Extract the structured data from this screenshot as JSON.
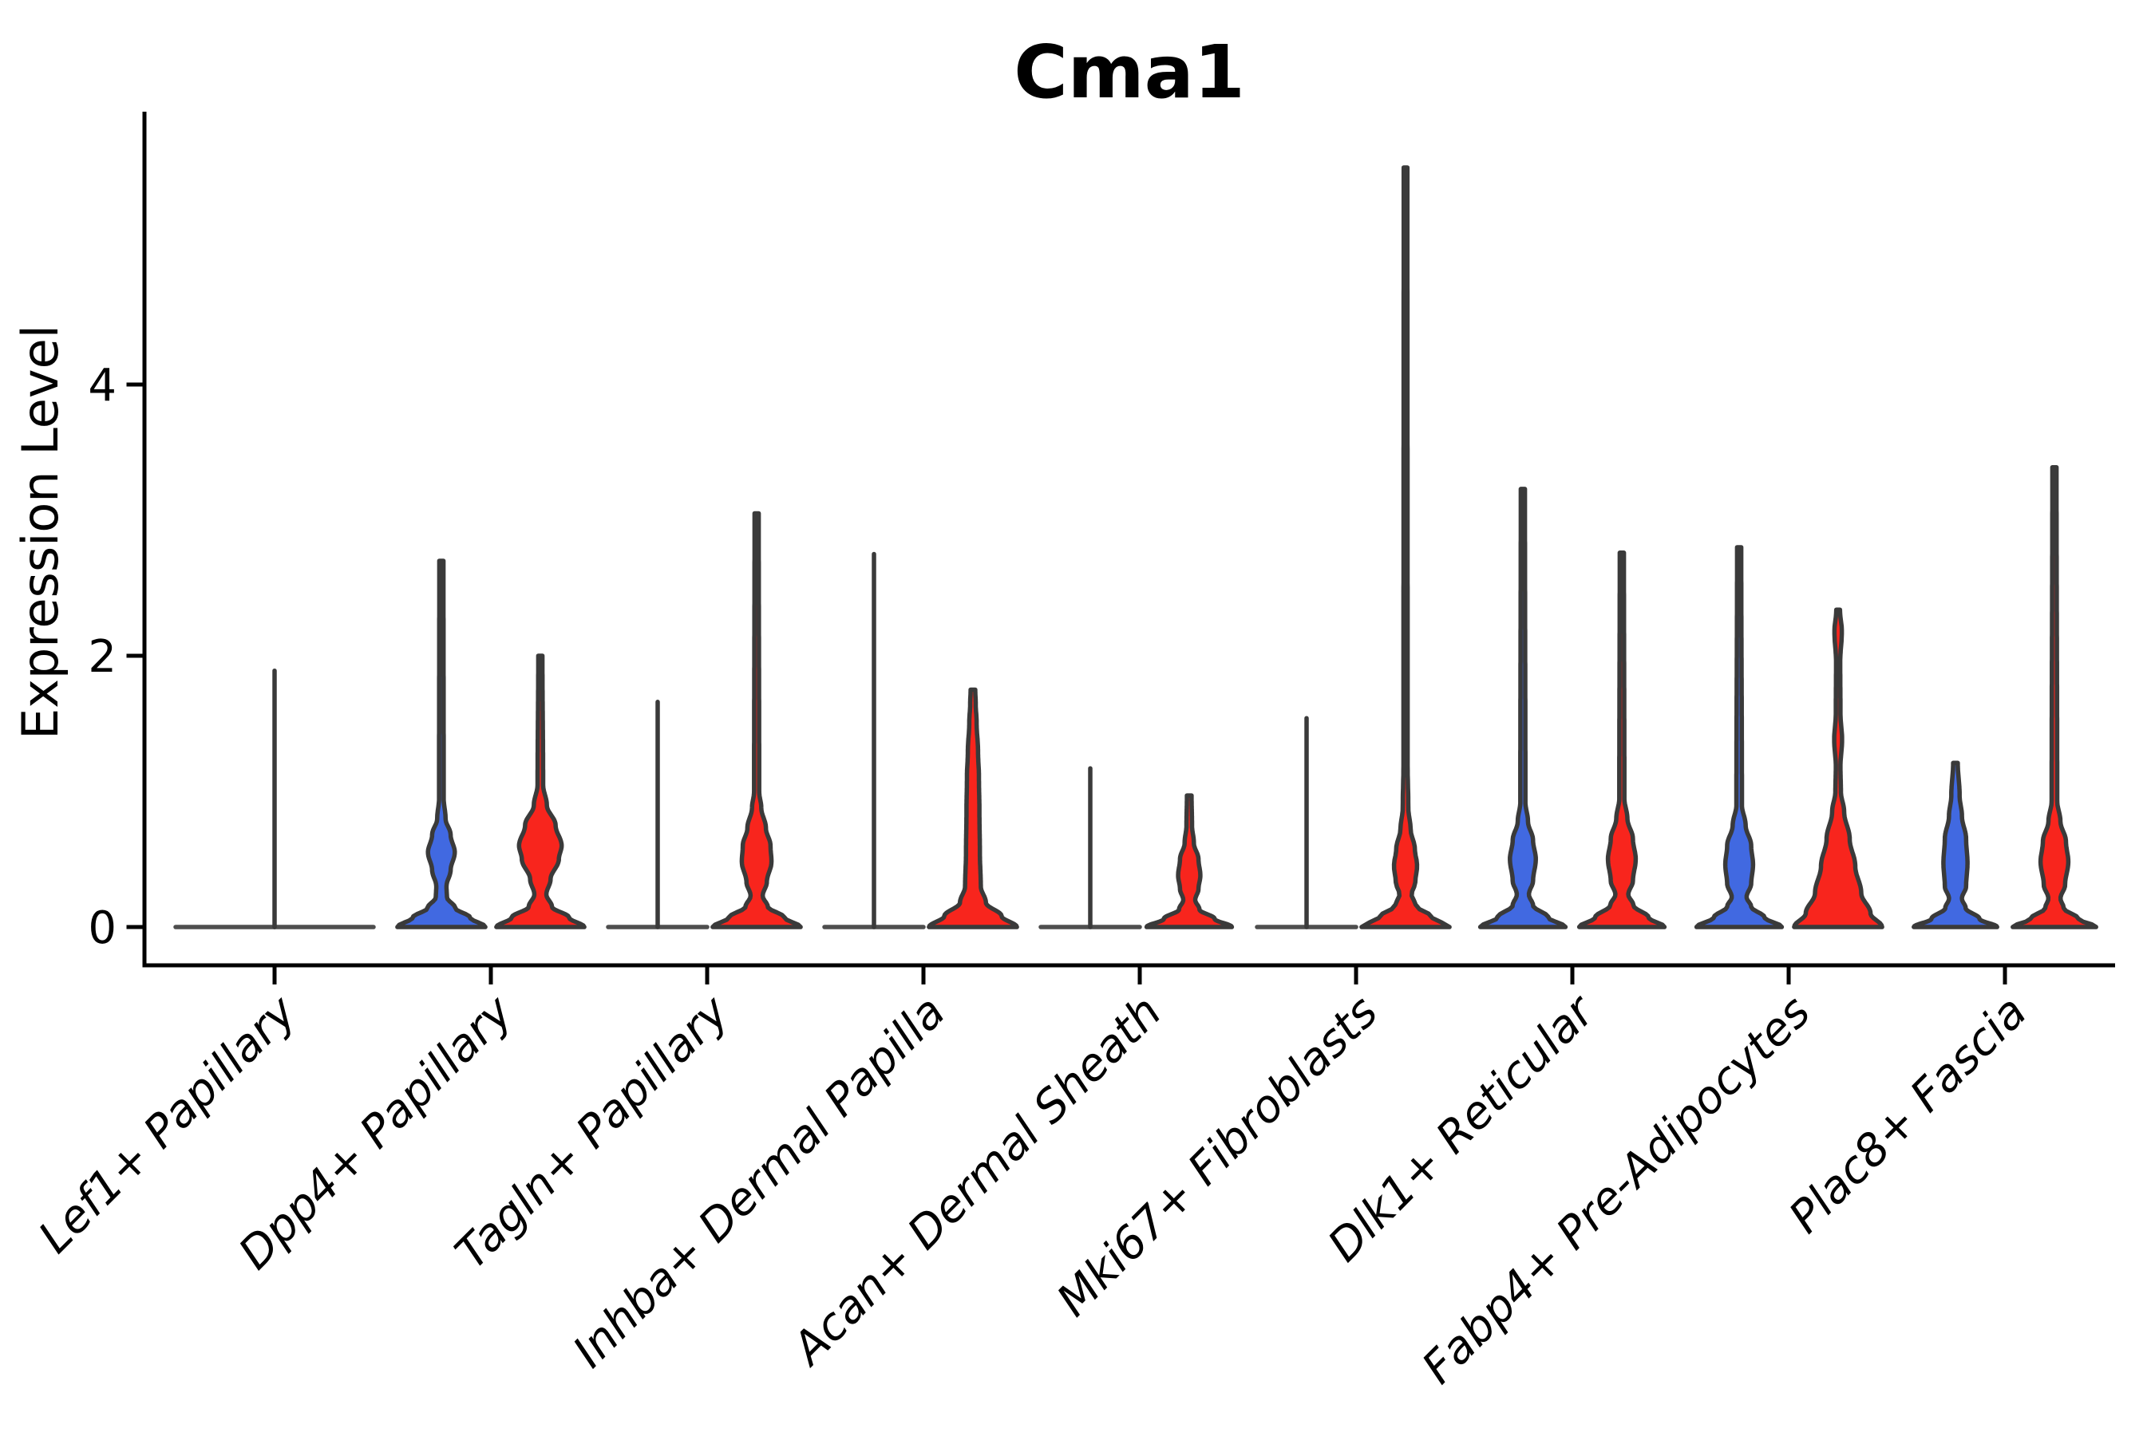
{
  "title": "Cma1",
  "axes": {
    "ylabel": "Expression Level",
    "yticks": [
      "0",
      "2",
      "4"
    ],
    "ytick_values": [
      0,
      2,
      4
    ]
  },
  "colors": {
    "blue_fill": "#4169E1",
    "red_fill": "#F8251D",
    "outline": "#3A3A3A",
    "flat_line": "#4E4E4E",
    "axis": "#000000",
    "background": "#FFFFFF"
  },
  "chart_data": {
    "type": "violin",
    "title": "Cma1",
    "ylabel": "Expression Level",
    "ylim": [
      0,
      6.0
    ],
    "grid": false,
    "legend": "none",
    "split": [
      "blue",
      "red"
    ],
    "categories": [
      "Lef1+ Papillary",
      "Dpp4+ Papillary",
      "Tagln+ Papillary",
      "Inhba+ Dermal Papilla",
      "Acan+ Dermal Sheath",
      "Mki67+ Fibroblasts",
      "Dlk1+ Reticular",
      "Fabp4+ Pre-Adipocytes",
      "Plac8+ Fascia"
    ],
    "groups": [
      {
        "category": "Lef1+ Papillary",
        "center_spike": 1.89,
        "blue": {
          "type": "flat"
        },
        "red": {
          "type": "flat"
        }
      },
      {
        "category": "Dpp4+ Papillary",
        "blue": {
          "type": "violin",
          "max": 2.7,
          "profile": [
            [
              0,
              0.95
            ],
            [
              0.07,
              0.62
            ],
            [
              0.14,
              0.3
            ],
            [
              0.22,
              0.12
            ],
            [
              0.3,
              0.11
            ],
            [
              0.42,
              0.2
            ],
            [
              0.55,
              0.29
            ],
            [
              0.68,
              0.2
            ],
            [
              0.8,
              0.09
            ],
            [
              0.95,
              0.05
            ],
            [
              2.7,
              0.045
            ]
          ]
        },
        "red": {
          "type": "violin",
          "max": 2.0,
          "profile": [
            [
              0,
              0.95
            ],
            [
              0.07,
              0.62
            ],
            [
              0.15,
              0.25
            ],
            [
              0.24,
              0.13
            ],
            [
              0.35,
              0.22
            ],
            [
              0.5,
              0.4
            ],
            [
              0.6,
              0.46
            ],
            [
              0.75,
              0.33
            ],
            [
              0.9,
              0.14
            ],
            [
              1.05,
              0.06
            ],
            [
              2.0,
              0.045
            ]
          ]
        }
      },
      {
        "category": "Tagln+ Papillary",
        "blue": {
          "type": "spike",
          "max": 1.66
        },
        "red": {
          "type": "violin",
          "max": 3.05,
          "profile": [
            [
              0,
              0.95
            ],
            [
              0.07,
              0.6
            ],
            [
              0.15,
              0.24
            ],
            [
              0.23,
              0.13
            ],
            [
              0.33,
              0.22
            ],
            [
              0.48,
              0.32
            ],
            [
              0.6,
              0.3
            ],
            [
              0.73,
              0.2
            ],
            [
              0.88,
              0.1
            ],
            [
              1.0,
              0.055
            ],
            [
              3.05,
              0.045
            ]
          ]
        }
      },
      {
        "category": "Inhba+ Dermal Papilla",
        "blue": {
          "type": "spike",
          "max": 2.75
        },
        "red": {
          "type": "violin",
          "max": 1.75,
          "profile": [
            [
              0,
              0.95
            ],
            [
              0.08,
              0.62
            ],
            [
              0.18,
              0.28
            ],
            [
              0.3,
              0.17
            ],
            [
              0.55,
              0.15
            ],
            [
              0.85,
              0.14
            ],
            [
              1.1,
              0.13
            ],
            [
              1.3,
              0.11
            ],
            [
              1.5,
              0.08
            ],
            [
              1.65,
              0.06
            ],
            [
              1.75,
              0.05
            ]
          ]
        }
      },
      {
        "category": "Acan+ Dermal Sheath",
        "blue": {
          "type": "spike",
          "max": 1.17
        },
        "red": {
          "type": "violin",
          "max": 0.97,
          "profile": [
            [
              0,
              0.92
            ],
            [
              0.06,
              0.55
            ],
            [
              0.13,
              0.22
            ],
            [
              0.2,
              0.13
            ],
            [
              0.28,
              0.2
            ],
            [
              0.38,
              0.24
            ],
            [
              0.5,
              0.2
            ],
            [
              0.62,
              0.1
            ],
            [
              0.75,
              0.06
            ],
            [
              0.97,
              0.05
            ]
          ]
        }
      },
      {
        "category": "Mki67+ Fibroblasts",
        "blue": {
          "type": "spike",
          "max": 1.54
        },
        "red": {
          "type": "violin",
          "max": 5.6,
          "profile": [
            [
              0,
              0.95
            ],
            [
              0.07,
              0.58
            ],
            [
              0.16,
              0.22
            ],
            [
              0.24,
              0.13
            ],
            [
              0.33,
              0.21
            ],
            [
              0.45,
              0.25
            ],
            [
              0.58,
              0.2
            ],
            [
              0.72,
              0.11
            ],
            [
              0.88,
              0.06
            ],
            [
              1.2,
              0.045
            ],
            [
              5.6,
              0.04
            ]
          ]
        }
      },
      {
        "category": "Dlk1+ Reticular",
        "blue": {
          "type": "violin",
          "max": 3.23,
          "profile": [
            [
              0,
              0.92
            ],
            [
              0.07,
              0.55
            ],
            [
              0.16,
              0.22
            ],
            [
              0.24,
              0.13
            ],
            [
              0.34,
              0.22
            ],
            [
              0.5,
              0.28
            ],
            [
              0.64,
              0.22
            ],
            [
              0.78,
              0.11
            ],
            [
              0.92,
              0.055
            ],
            [
              3.23,
              0.045
            ]
          ]
        },
        "red": {
          "type": "violin",
          "max": 2.76,
          "profile": [
            [
              0,
              0.92
            ],
            [
              0.07,
              0.58
            ],
            [
              0.16,
              0.25
            ],
            [
              0.24,
              0.14
            ],
            [
              0.34,
              0.24
            ],
            [
              0.5,
              0.3
            ],
            [
              0.65,
              0.24
            ],
            [
              0.8,
              0.12
            ],
            [
              0.95,
              0.055
            ],
            [
              2.76,
              0.045
            ]
          ]
        }
      },
      {
        "category": "Fabp4+ Pre-Adipocytes",
        "blue": {
          "type": "violin",
          "max": 2.8,
          "profile": [
            [
              0,
              0.92
            ],
            [
              0.07,
              0.55
            ],
            [
              0.15,
              0.26
            ],
            [
              0.22,
              0.16
            ],
            [
              0.32,
              0.26
            ],
            [
              0.46,
              0.3
            ],
            [
              0.6,
              0.26
            ],
            [
              0.75,
              0.14
            ],
            [
              0.9,
              0.06
            ],
            [
              2.8,
              0.045
            ]
          ]
        },
        "red": {
          "type": "violin",
          "max": 2.34,
          "profile": [
            [
              0,
              0.95
            ],
            [
              0.1,
              0.7
            ],
            [
              0.25,
              0.5
            ],
            [
              0.45,
              0.37
            ],
            [
              0.65,
              0.25
            ],
            [
              0.85,
              0.13
            ],
            [
              1.0,
              0.06
            ],
            [
              1.18,
              0.05
            ],
            [
              1.38,
              0.085
            ],
            [
              1.58,
              0.05
            ],
            [
              1.95,
              0.045
            ],
            [
              2.18,
              0.08
            ],
            [
              2.34,
              0.04
            ]
          ]
        }
      },
      {
        "category": "Plac8+ Fascia",
        "blue": {
          "type": "violin",
          "max": 1.21,
          "profile": [
            [
              0,
              0.9
            ],
            [
              0.06,
              0.52
            ],
            [
              0.14,
              0.22
            ],
            [
              0.21,
              0.14
            ],
            [
              0.3,
              0.23
            ],
            [
              0.47,
              0.26
            ],
            [
              0.65,
              0.23
            ],
            [
              0.82,
              0.14
            ],
            [
              0.97,
              0.09
            ],
            [
              1.21,
              0.05
            ]
          ]
        },
        "red": {
          "type": "violin",
          "max": 3.39,
          "profile": [
            [
              0,
              0.9
            ],
            [
              0.06,
              0.52
            ],
            [
              0.14,
              0.2
            ],
            [
              0.21,
              0.13
            ],
            [
              0.31,
              0.23
            ],
            [
              0.48,
              0.3
            ],
            [
              0.63,
              0.25
            ],
            [
              0.78,
              0.13
            ],
            [
              0.93,
              0.06
            ],
            [
              3.39,
              0.045
            ]
          ]
        }
      }
    ]
  }
}
